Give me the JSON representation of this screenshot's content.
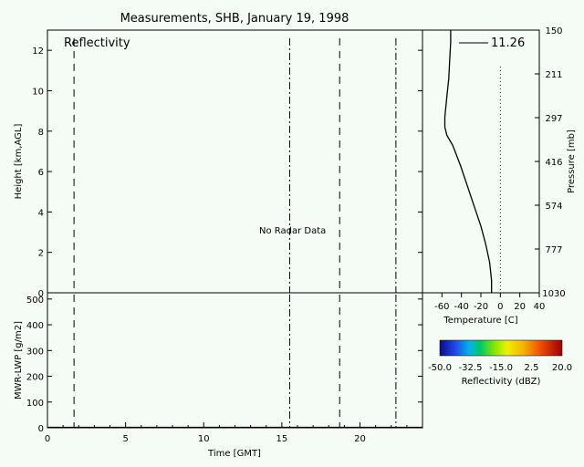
{
  "title": "Measurements, SHB, January 19, 1998",
  "chart_data": [
    {
      "type": "line",
      "panel": "reflectivity",
      "title": "Reflectivity",
      "ylabel": "Height [km,AGL]",
      "ylim": [
        0,
        13
      ],
      "xlim": [
        0,
        24
      ],
      "yticks": [
        "0",
        "2",
        "4",
        "6",
        "8",
        "10",
        "12"
      ],
      "annotation": "No Radar Data",
      "markers": [
        {
          "x": 1.7,
          "style": "dashed"
        },
        {
          "x": 15.5,
          "style": "dashdot"
        },
        {
          "x": 18.7,
          "style": "dashed"
        },
        {
          "x": 22.3,
          "style": "dashdot"
        }
      ]
    },
    {
      "type": "line",
      "panel": "temperature_profile",
      "xlabel": "Temperature [C]",
      "ylabel": "Pressure [mb]",
      "xlim": [
        -80,
        40
      ],
      "xticks": [
        "-60",
        "-40",
        "-20",
        "0",
        "20",
        "40"
      ],
      "pressure_ticks": [
        "150",
        "211",
        "297",
        "416",
        "574",
        "777",
        "1030"
      ],
      "legend": "11.26",
      "zero_line_top_km": 11.2,
      "profile": [
        {
          "t": -9,
          "h": 0.0
        },
        {
          "t": -9,
          "h": 0.6
        },
        {
          "t": -11,
          "h": 1.5
        },
        {
          "t": -15,
          "h": 2.4
        },
        {
          "t": -20,
          "h": 3.3
        },
        {
          "t": -27,
          "h": 4.3
        },
        {
          "t": -34,
          "h": 5.3
        },
        {
          "t": -41,
          "h": 6.3
        },
        {
          "t": -49,
          "h": 7.3
        },
        {
          "t": -55,
          "h": 7.8
        },
        {
          "t": -57,
          "h": 8.2
        },
        {
          "t": -57,
          "h": 8.7
        },
        {
          "t": -55,
          "h": 9.7
        },
        {
          "t": -53,
          "h": 10.6
        },
        {
          "t": -52,
          "h": 11.6
        },
        {
          "t": -51,
          "h": 12.4
        },
        {
          "t": -51,
          "h": 13.0
        }
      ]
    },
    {
      "type": "line",
      "panel": "lwp",
      "ylabel": "MWR-LWP [g/m2]",
      "xlabel": "Time [GMT]",
      "xlim": [
        0,
        24
      ],
      "ylim": [
        0,
        510
      ],
      "xticks": [
        "0",
        "5",
        "10",
        "15",
        "20"
      ],
      "yticks": [
        "0",
        "100",
        "200",
        "300",
        "400",
        "500"
      ],
      "series": [
        {
          "x": [
            0,
            24
          ],
          "y": [
            2,
            2
          ]
        }
      ]
    }
  ],
  "colorbar": {
    "label": "Reflectivity (dBZ)",
    "ticks": [
      "-50.0",
      "-32.5",
      "-15.0",
      "2.5",
      "20.0"
    ]
  }
}
